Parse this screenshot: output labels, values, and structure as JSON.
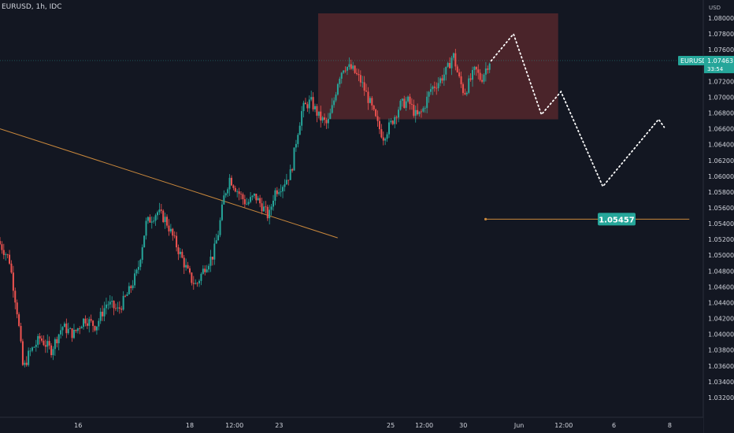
{
  "header": {
    "ticker_label": "EURUSD, 1h, IDC"
  },
  "price_axis": {
    "currency": "USD"
  },
  "current_price": {
    "symbol": "EURUSD",
    "value": "1.07463",
    "countdown": "33:54"
  },
  "target_label": "1.05457",
  "colors": {
    "background": "#131722",
    "up": "#26a69a",
    "down": "#ef5350",
    "zone": "#5d2a2e",
    "trendline": "#c9883c",
    "label_bg": "#26a69a"
  },
  "chart_data": {
    "type": "candlestick",
    "title": "",
    "xlabel": "",
    "ylabel": "",
    "ylim": [
      1.031,
      1.081
    ],
    "y_ticks": [
      "1.08000",
      "1.07800",
      "1.07600",
      "1.07400",
      "1.07200",
      "1.07000",
      "1.06800",
      "1.06600",
      "1.06400",
      "1.06200",
      "1.06000",
      "1.05800",
      "1.05600",
      "1.05400",
      "1.05200",
      "1.05000",
      "1.04800",
      "1.04600",
      "1.04400",
      "1.04200",
      "1.04000",
      "1.03800",
      "1.03600",
      "1.03400",
      "1.03200"
    ],
    "x_ticks": [
      {
        "label": "16",
        "x": 1.4
      },
      {
        "label": "18",
        "x": 3.4
      },
      {
        "label": "12:00",
        "x": 4.2
      },
      {
        "label": "23",
        "x": 5.0
      },
      {
        "label": "25",
        "x": 7.0
      },
      {
        "label": "12:00",
        "x": 7.6
      },
      {
        "label": "30",
        "x": 8.3
      },
      {
        "label": "Jun",
        "x": 9.3
      },
      {
        "label": "12:00",
        "x": 10.1
      },
      {
        "label": "6",
        "x": 11.0
      },
      {
        "label": "8",
        "x": 12.0
      }
    ],
    "price_path": [
      [
        0.0,
        1.0518
      ],
      [
        0.2,
        1.0495
      ],
      [
        0.35,
        1.0425
      ],
      [
        0.45,
        1.0355
      ],
      [
        0.55,
        1.0375
      ],
      [
        0.75,
        1.0395
      ],
      [
        0.95,
        1.038
      ],
      [
        1.15,
        1.041
      ],
      [
        1.35,
        1.04
      ],
      [
        1.55,
        1.042
      ],
      [
        1.75,
        1.041
      ],
      [
        1.95,
        1.044
      ],
      [
        2.15,
        1.043
      ],
      [
        2.35,
        1.0455
      ],
      [
        2.5,
        1.048
      ],
      [
        2.65,
        1.054
      ],
      [
        2.85,
        1.0555
      ],
      [
        3.0,
        1.0545
      ],
      [
        3.15,
        1.052
      ],
      [
        3.3,
        1.0495
      ],
      [
        3.45,
        1.047
      ],
      [
        3.55,
        1.0462
      ],
      [
        3.7,
        1.0485
      ],
      [
        3.85,
        1.05
      ],
      [
        3.95,
        1.053
      ],
      [
        4.05,
        1.0575
      ],
      [
        4.15,
        1.0598
      ],
      [
        4.3,
        1.058
      ],
      [
        4.45,
        1.0565
      ],
      [
        4.6,
        1.0575
      ],
      [
        4.75,
        1.056
      ],
      [
        4.85,
        1.0548
      ],
      [
        4.95,
        1.058
      ],
      [
        5.1,
        1.059
      ],
      [
        5.25,
        1.0605
      ],
      [
        5.35,
        1.065
      ],
      [
        5.45,
        1.0685
      ],
      [
        5.6,
        1.0695
      ],
      [
        5.75,
        1.0675
      ],
      [
        5.9,
        1.0665
      ],
      [
        6.0,
        1.069
      ],
      [
        6.1,
        1.0725
      ],
      [
        6.2,
        1.074
      ],
      [
        6.35,
        1.0735
      ],
      [
        6.5,
        1.072
      ],
      [
        6.65,
        1.0695
      ],
      [
        6.8,
        1.0665
      ],
      [
        6.9,
        1.065
      ],
      [
        7.05,
        1.0668
      ],
      [
        7.2,
        1.069
      ],
      [
        7.35,
        1.0695
      ],
      [
        7.5,
        1.0675
      ],
      [
        7.6,
        1.0682
      ],
      [
        7.75,
        1.071
      ],
      [
        7.9,
        1.072
      ],
      [
        8.05,
        1.0735
      ],
      [
        8.15,
        1.0755
      ],
      [
        8.25,
        1.0725
      ],
      [
        8.35,
        1.0705
      ],
      [
        8.45,
        1.072
      ],
      [
        8.55,
        1.0735
      ],
      [
        8.65,
        1.0722
      ],
      [
        8.8,
        1.0746
      ]
    ],
    "zone": {
      "x0": 5.7,
      "x1": 10.0,
      "y0": 1.0672,
      "y1": 1.0806
    },
    "trendline": [
      [
        0.0,
        1.066
      ],
      [
        6.05,
        1.0522
      ]
    ],
    "target_line": {
      "x0": 8.7,
      "x1": 12.35,
      "y": 1.05457
    },
    "projection": [
      [
        8.8,
        1.0746
      ],
      [
        9.2,
        1.078
      ],
      [
        9.7,
        1.0678
      ],
      [
        10.05,
        1.0707
      ],
      [
        10.8,
        1.0587
      ],
      [
        11.8,
        1.0672
      ],
      [
        11.9,
        1.0662
      ]
    ],
    "grid": false,
    "legend": "none"
  }
}
